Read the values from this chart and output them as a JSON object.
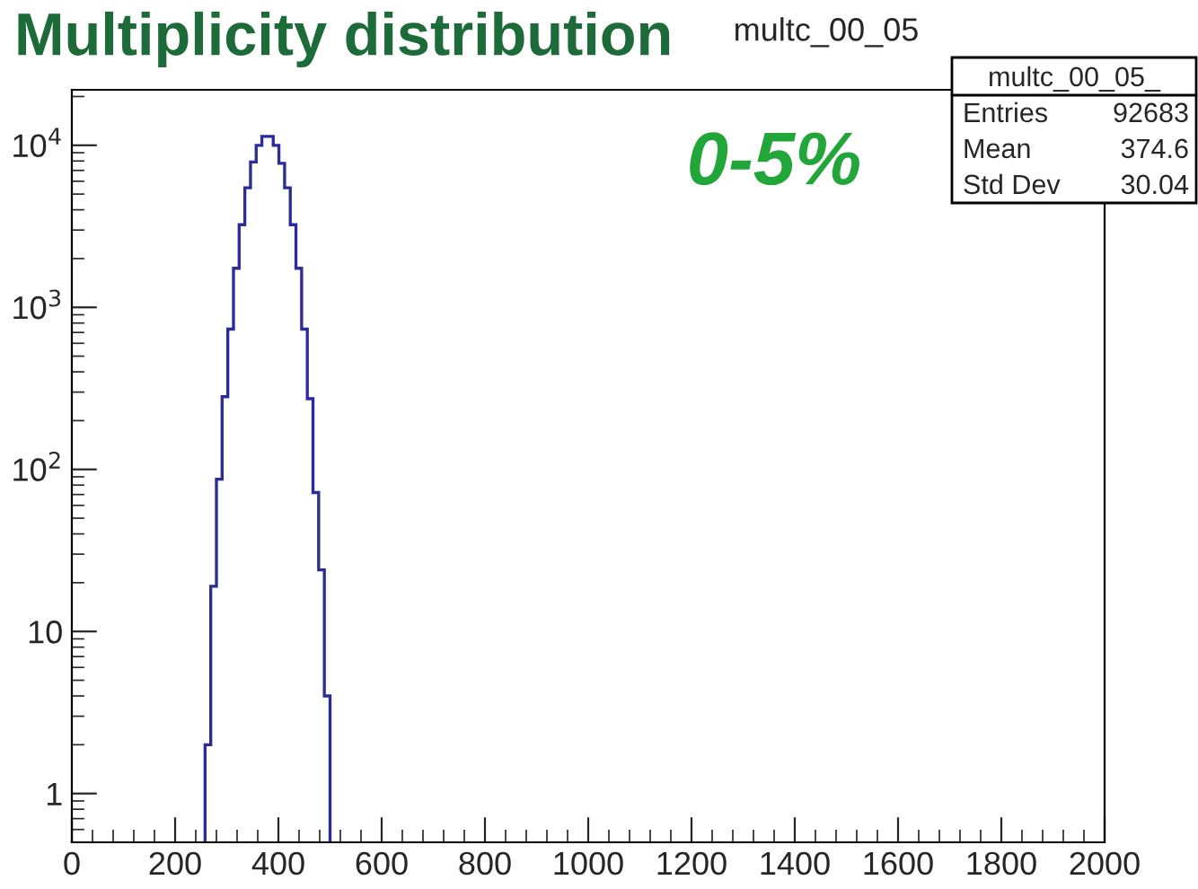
{
  "chart_data": {
    "type": "histogram",
    "title": "multc_00_05",
    "bins": [
      258,
      269,
      280,
      291,
      302,
      313,
      324,
      335,
      346,
      357,
      368,
      379,
      390,
      401,
      412,
      423,
      434,
      445,
      456,
      467,
      478,
      489,
      500
    ],
    "values": [
      2,
      19,
      87,
      281,
      734,
      1742,
      3236,
      5470,
      7890,
      10000,
      11350,
      11350,
      10000,
      7740,
      5470,
      3236,
      1742,
      734,
      273,
      72,
      24,
      4
    ],
    "color": "#2b2b9a",
    "log": true,
    "xlim": [
      0,
      2000
    ],
    "xticks": [
      0,
      200,
      400,
      600,
      800,
      1000,
      1200,
      1400,
      1600,
      1800,
      2000
    ],
    "ylim": [
      0.5,
      22000
    ],
    "yticks": [
      1,
      10,
      {
        "value": 100,
        "label": "10$^{2}$"
      },
      {
        "value": 1000,
        "label": "10$^{3}$"
      },
      {
        "value": 10000,
        "label": "10$^{4}$"
      }
    ],
    "grid": false,
    "legend": false,
    "annotations": [
      "Multiplicity distribution",
      "0-5%",
      "multc_00_05_",
      "Entries",
      "92683",
      "Mean",
      "374.6",
      "Std Dev",
      "30.04"
    ]
  }
}
